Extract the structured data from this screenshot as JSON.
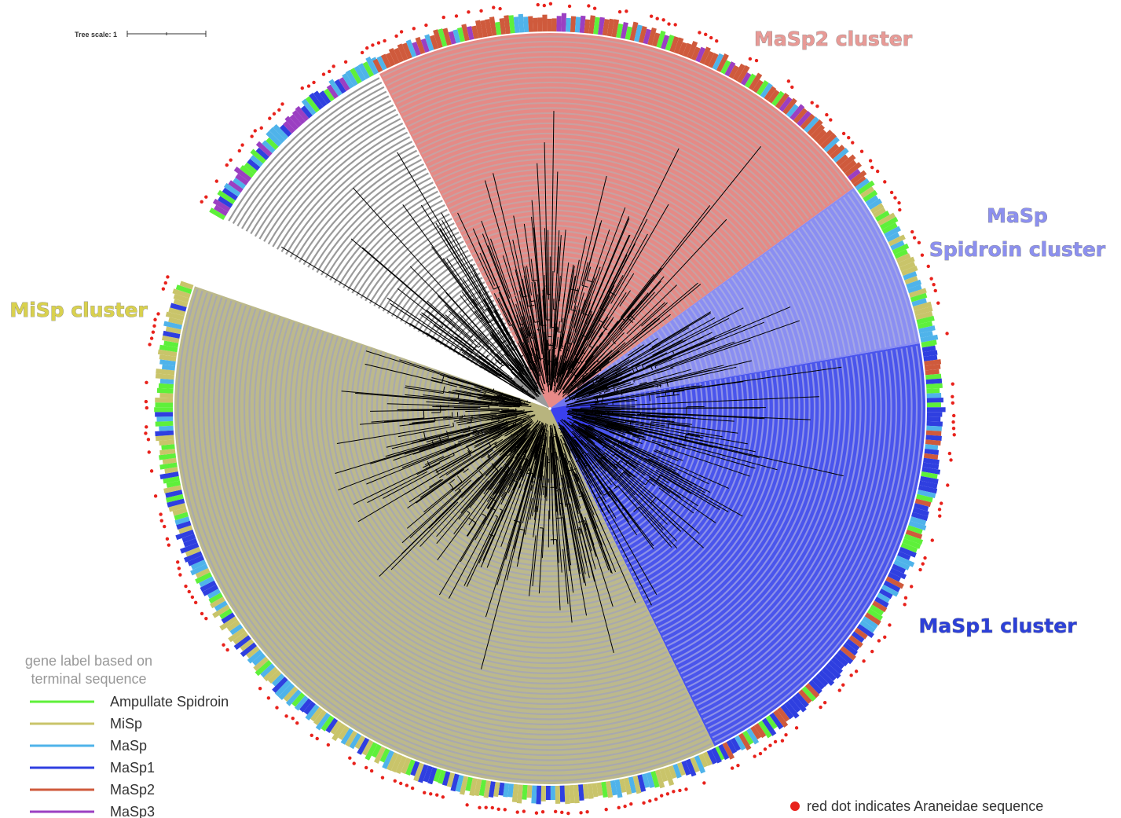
{
  "tree_scale": {
    "label": "Tree scale: 1"
  },
  "clusters": [
    {
      "lines": [
        "MaSp2 cluster"
      ],
      "color": "#e89a96"
    },
    {
      "lines": [
        "MaSp",
        "Spidroin cluster"
      ],
      "color": "#8c90ef"
    },
    {
      "lines": [
        "MiSp cluster"
      ],
      "color": "#d9d14e"
    },
    {
      "lines": [
        "MaSp1 cluster"
      ],
      "color": "#2c40d8"
    }
  ],
  "legend": {
    "title": [
      "gene label based on",
      "terminal sequence"
    ],
    "items": [
      {
        "label": "Ampullate Spidroin",
        "color": "#5ef03a"
      },
      {
        "label": "MiSp",
        "color": "#c9c46a"
      },
      {
        "label": "MaSp",
        "color": "#4fb3ea"
      },
      {
        "label": "MaSp1",
        "color": "#2f3fe0"
      },
      {
        "label": "MaSp2",
        "color": "#cf5a3c"
      },
      {
        "label": "MaSp3",
        "color": "#9b3fc2"
      }
    ]
  },
  "note": {
    "label": "red dot indicates Araneidae sequence",
    "color": "#e8221c"
  }
}
